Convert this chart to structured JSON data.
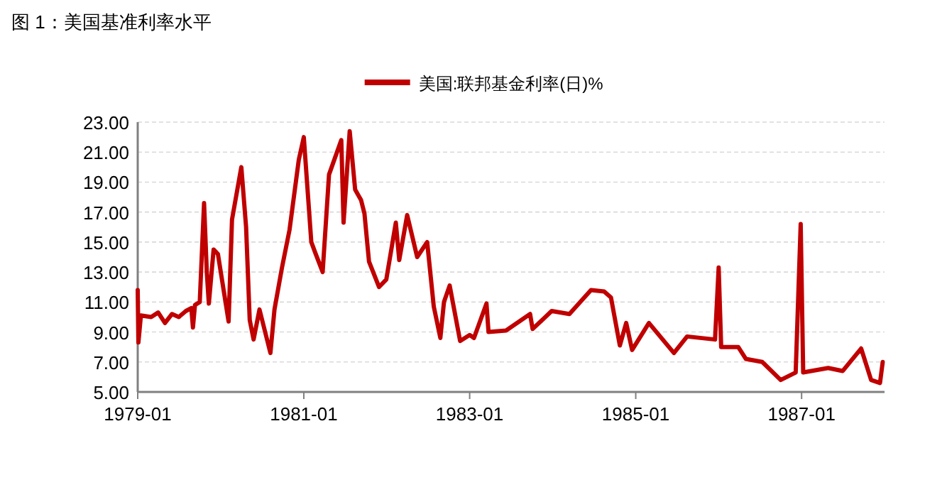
{
  "chart_data": {
    "type": "line",
    "title": "图 1：美国基准利率水平",
    "x": [
      "1979-01-01",
      "1979-01-04",
      "1979-01-15",
      "1979-03-01",
      "1979-04-01",
      "1979-05-01",
      "1979-06-01",
      "1979-07-01",
      "1979-08-01",
      "1979-08-25",
      "1979-09-01",
      "1979-09-10",
      "1979-10-01",
      "1979-10-20",
      "1979-11-01",
      "1979-11-10",
      "1979-12-01",
      "1979-12-20",
      "1980-02-05",
      "1980-02-20",
      "1980-04-01",
      "1980-04-22",
      "1980-05-08",
      "1980-05-25",
      "1980-06-20",
      "1980-08-07",
      "1980-08-25",
      "1980-09-27",
      "1980-10-30",
      "1980-12-10",
      "1981-01-01",
      "1981-02-03",
      "1981-02-20",
      "1981-03-25",
      "1981-04-22",
      "1981-06-15",
      "1981-06-25",
      "1981-07-22",
      "1981-08-15",
      "1981-09-10",
      "1981-09-25",
      "1981-10-15",
      "1981-11-28",
      "1981-12-30",
      "1982-02-10",
      "1982-02-25",
      "1982-04-01",
      "1982-05-15",
      "1982-06-28",
      "1982-07-27",
      "1982-08-25",
      "1982-09-10",
      "1982-10-05",
      "1982-11-20",
      "1983-01-01",
      "1983-01-20",
      "1983-03-16",
      "1983-03-25",
      "1983-06-10",
      "1983-09-24",
      "1983-10-05",
      "1983-12-28",
      "1984-03-15",
      "1984-06-18",
      "1984-08-15",
      "1984-09-14",
      "1984-10-23",
      "1984-11-20",
      "1984-12-16",
      "1985-02-28",
      "1985-06-18",
      "1985-08-15",
      "1985-12-16",
      "1986-01-01",
      "1986-01-12",
      "1986-03-28",
      "1986-05-01",
      "1986-07-12",
      "1986-10-01",
      "1986-12-06",
      "1986-12-28",
      "1987-01-08",
      "1987-04-28",
      "1987-07-01",
      "1987-09-20",
      "1987-11-03",
      "1987-12-12",
      "1987-12-24"
    ],
    "series": [
      {
        "name": "美国:联邦基金利率(日)%",
        "color": "#c00000",
        "values": [
          11.8,
          8.3,
          10.1,
          10.0,
          10.3,
          9.6,
          10.2,
          10.0,
          10.4,
          10.6,
          9.3,
          10.8,
          11.0,
          17.6,
          13.0,
          10.9,
          14.5,
          14.2,
          9.7,
          16.5,
          20.0,
          16.0,
          9.8,
          8.5,
          10.5,
          7.6,
          10.5,
          13.3,
          15.8,
          20.5,
          22.0,
          15.0,
          14.3,
          13.0,
          19.5,
          21.8,
          16.3,
          22.4,
          18.5,
          17.8,
          16.9,
          13.7,
          12.0,
          12.5,
          16.3,
          13.8,
          16.8,
          14.0,
          15.0,
          10.7,
          8.6,
          11.0,
          12.1,
          8.4,
          8.8,
          8.6,
          10.9,
          9.0,
          9.1,
          10.2,
          9.2,
          10.4,
          10.2,
          11.8,
          11.7,
          11.3,
          8.1,
          9.6,
          7.8,
          9.6,
          7.6,
          8.7,
          8.5,
          13.3,
          8.0,
          8.0,
          7.2,
          7.0,
          5.8,
          6.3,
          16.2,
          6.3,
          6.6,
          6.4,
          7.9,
          5.8,
          5.6,
          7.0
        ]
      }
    ],
    "xlim": [
      "1979-01-01",
      "1988-01-01"
    ],
    "xticks": [
      "1979-01",
      "1981-01",
      "1983-01",
      "1985-01",
      "1987-01"
    ],
    "ylim": [
      5,
      23
    ],
    "yticks": [
      {
        "value": 5,
        "label": "5.00"
      },
      {
        "value": 7,
        "label": "7.00"
      },
      {
        "value": 9,
        "label": "9.00"
      },
      {
        "value": 11,
        "label": "11.00"
      },
      {
        "value": 13,
        "label": "13.00"
      },
      {
        "value": 15,
        "label": "15.00"
      },
      {
        "value": 17,
        "label": "17.00"
      },
      {
        "value": 19,
        "label": "19.00"
      },
      {
        "value": 21,
        "label": "21.00"
      },
      {
        "value": 23,
        "label": "23.00"
      }
    ],
    "grid": "y",
    "legend": "top",
    "marker": "none",
    "line_style": "solid"
  }
}
